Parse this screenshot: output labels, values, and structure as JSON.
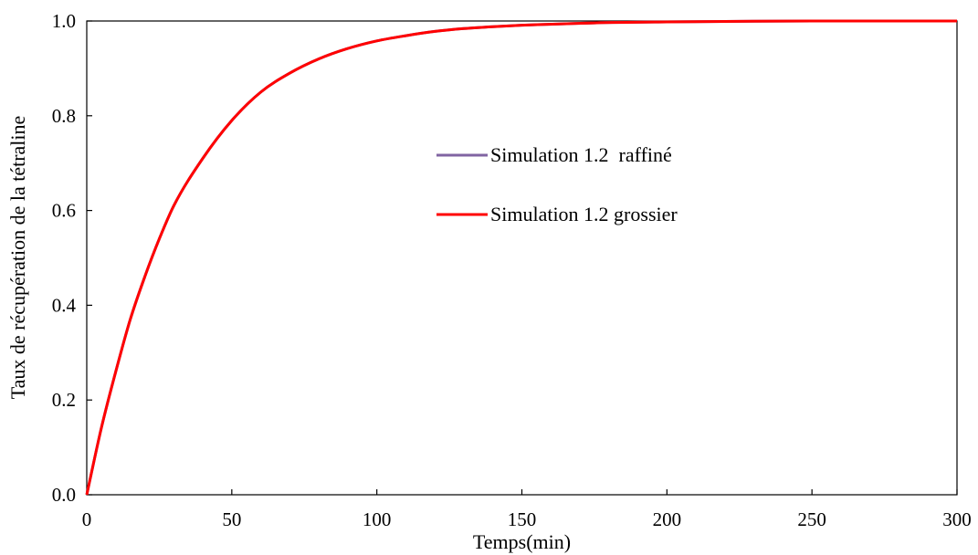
{
  "chart_data": {
    "type": "line",
    "title": "",
    "xlabel": "Temps(min)",
    "ylabel": "Taux de récupération de la tétraline",
    "xlim": [
      0,
      300
    ],
    "ylim": [
      0,
      1.0
    ],
    "x_ticks": [
      0,
      50,
      100,
      150,
      200,
      250,
      300
    ],
    "y_ticks": [
      0.0,
      0.2,
      0.4,
      0.6,
      0.8,
      1.0
    ],
    "x_tick_labels": [
      "0",
      "50",
      "100",
      "150",
      "200",
      "250",
      "300"
    ],
    "y_tick_labels": [
      "0.0",
      "0.2",
      "0.4",
      "0.6",
      "0.8",
      "1.0"
    ],
    "grid": false,
    "legend_position": "center-right",
    "series": [
      {
        "name": "Simulation 1.2  raffiné",
        "color": "#8064A2",
        "x": [
          0,
          5,
          10,
          15,
          20,
          25,
          30,
          40,
          50,
          60,
          70,
          80,
          90,
          100,
          110,
          120,
          130,
          140,
          150,
          175,
          200,
          250,
          300
        ],
        "y": [
          0,
          0.14,
          0.26,
          0.37,
          0.46,
          0.54,
          0.61,
          0.71,
          0.79,
          0.85,
          0.89,
          0.92,
          0.942,
          0.958,
          0.969,
          0.978,
          0.984,
          0.988,
          0.991,
          0.996,
          0.998,
          1.0,
          1.0
        ]
      },
      {
        "name": "Simulation 1.2 grossier",
        "color": "#FF0000",
        "x": [
          0,
          5,
          10,
          15,
          20,
          25,
          30,
          40,
          50,
          60,
          70,
          80,
          90,
          100,
          110,
          120,
          130,
          140,
          150,
          175,
          200,
          250,
          300
        ],
        "y": [
          0,
          0.14,
          0.26,
          0.37,
          0.46,
          0.54,
          0.61,
          0.71,
          0.79,
          0.85,
          0.89,
          0.92,
          0.942,
          0.958,
          0.969,
          0.978,
          0.984,
          0.988,
          0.991,
          0.996,
          0.998,
          1.0,
          1.0
        ]
      }
    ]
  }
}
